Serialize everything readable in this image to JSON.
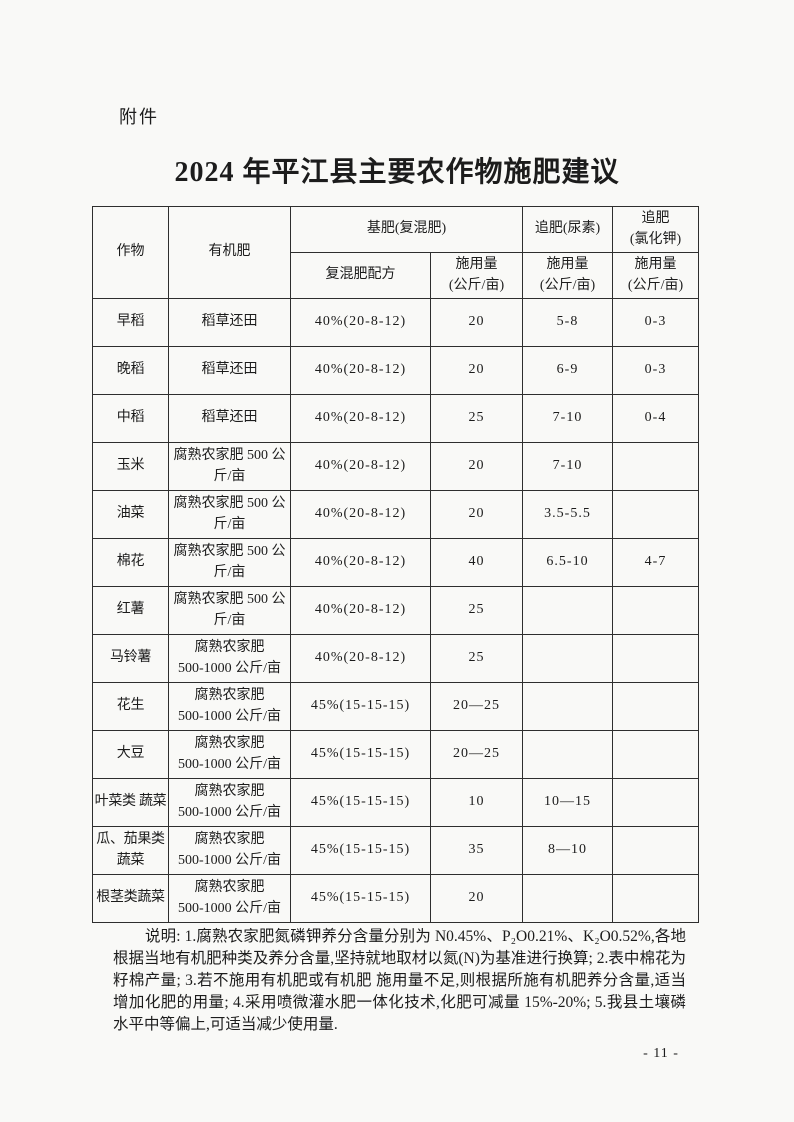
{
  "page": {
    "attachment_label": "附件",
    "title": "2024 年平江县主要农作物施肥建议",
    "page_number": "- 11 -"
  },
  "table": {
    "headers": {
      "crop": "作物",
      "organic": "有机肥",
      "base_group": "基肥(复混肥)",
      "base_formula": "复混肥配方",
      "amount_label": "施用量\n(公斤/亩)",
      "urea_group": "追肥(尿素)",
      "kcl_group": "追肥\n(氯化钾)"
    },
    "rows": [
      {
        "crop": "早稻",
        "organic": "稻草还田",
        "formula": "40%(20-8-12)",
        "base": "20",
        "urea": "5-8",
        "kcl": "0-3"
      },
      {
        "crop": "晚稻",
        "organic": "稻草还田",
        "formula": "40%(20-8-12)",
        "base": "20",
        "urea": "6-9",
        "kcl": "0-3"
      },
      {
        "crop": "中稻",
        "organic": "稻草还田",
        "formula": "40%(20-8-12)",
        "base": "25",
        "urea": "7-10",
        "kcl": "0-4"
      },
      {
        "crop": "玉米",
        "organic": "腐熟农家肥 500 公\n斤/亩",
        "formula": "40%(20-8-12)",
        "base": "20",
        "urea": "7-10",
        "kcl": ""
      },
      {
        "crop": "油菜",
        "organic": "腐熟农家肥 500 公\n斤/亩",
        "formula": "40%(20-8-12)",
        "base": "20",
        "urea": "3.5-5.5",
        "kcl": ""
      },
      {
        "crop": "棉花",
        "organic": "腐熟农家肥 500 公\n斤/亩",
        "formula": "40%(20-8-12)",
        "base": "40",
        "urea": "6.5-10",
        "kcl": "4-7"
      },
      {
        "crop": "红薯",
        "organic": "腐熟农家肥 500 公\n斤/亩",
        "formula": "40%(20-8-12)",
        "base": "25",
        "urea": "",
        "kcl": ""
      },
      {
        "crop": "马铃薯",
        "organic": "腐熟农家肥\n500-1000 公斤/亩",
        "formula": "40%(20-8-12)",
        "base": "25",
        "urea": "",
        "kcl": ""
      },
      {
        "crop": "花生",
        "organic": "腐熟农家肥\n500-1000 公斤/亩",
        "formula": "45%(15-15-15)",
        "base": "20—25",
        "urea": "",
        "kcl": ""
      },
      {
        "crop": "大豆",
        "organic": "腐熟农家肥\n500-1000 公斤/亩",
        "formula": "45%(15-15-15)",
        "base": "20—25",
        "urea": "",
        "kcl": ""
      },
      {
        "crop": "叶菜类 蔬菜",
        "organic": "腐熟农家肥\n500-1000 公斤/亩",
        "formula": "45%(15-15-15)",
        "base": "10",
        "urea": "10—15",
        "kcl": ""
      },
      {
        "crop": "瓜、茄果类\n蔬菜",
        "organic": "腐熟农家肥\n500-1000 公斤/亩",
        "formula": "45%(15-15-15)",
        "base": "35",
        "urea": "8—10",
        "kcl": ""
      },
      {
        "crop": "根茎类蔬菜",
        "organic": "腐熟农家肥\n500-1000 公斤/亩",
        "formula": "45%(15-15-15)",
        "base": "20",
        "urea": "",
        "kcl": ""
      }
    ]
  },
  "notes": "说明: 1.腐熟农家肥氮磷钾养分含量分别为 N0.45%、P₂O0.21%、K₂O0.52%,各地根据当地有机肥种类及养分含量,坚持就地取材以氮(N)为基准进行换算; 2.表中棉花为籽棉产量; 3.若不施用有机肥或有机肥 施用量不足,则根据所施有机肥养分含量,适当增加化肥的用量; 4.采用喷微灌水肥一体化技术,化肥可减量 15%-20%; 5.我县土壤磷水平中等偏上,可适当减少使用量."
}
